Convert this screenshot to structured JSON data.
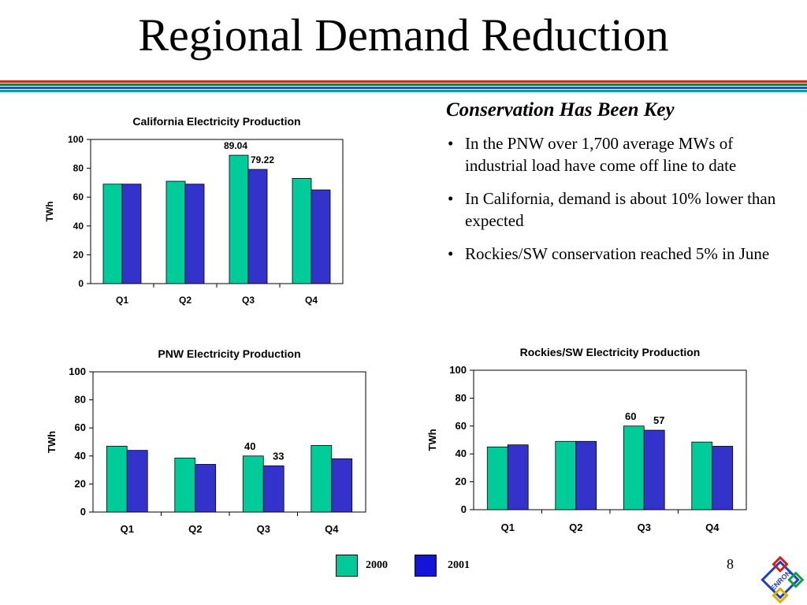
{
  "slide": {
    "title": "Regional Demand Reduction",
    "page_number": "8",
    "stripe_colors": [
      "#d0261c",
      "#1f7a3a",
      "#2f4fbf",
      "#00a0a0"
    ]
  },
  "panel": {
    "heading": "Conservation Has Been Key",
    "bullets": [
      "In the PNW over 1,700 average MWs of industrial load have come off line to date",
      "In California, demand is about 10% lower than expected",
      "Rockies/SW conservation reached 5% in June"
    ]
  },
  "legend": {
    "items": [
      {
        "label": "2000",
        "color": "#00c896"
      },
      {
        "label": "2001",
        "color": "#1414d8"
      }
    ]
  },
  "logo": {
    "text": "ENRON",
    "icon": "enron-logo-icon"
  },
  "colors": {
    "series_2000": "#00cc99",
    "series_2001": "#3333cc"
  },
  "chart_data": [
    {
      "type": "bar",
      "title": "California Electricity Production",
      "ylabel": "TWh",
      "xlabel": "",
      "categories": [
        "Q1",
        "Q2",
        "Q3",
        "Q4"
      ],
      "series": [
        {
          "name": "2000",
          "values": [
            69,
            71,
            89.04,
            73
          ]
        },
        {
          "name": "2001",
          "values": [
            69,
            69,
            79.22,
            65
          ]
        }
      ],
      "data_labels": [
        {
          "category": "Q3",
          "series": "2000",
          "text": "89.04"
        },
        {
          "category": "Q3",
          "series": "2001",
          "text": "79.22"
        }
      ],
      "ylim": [
        0,
        100
      ],
      "yticks": [
        0,
        20,
        40,
        60,
        80,
        100
      ],
      "grid": false,
      "legend": "bottom"
    },
    {
      "type": "bar",
      "title": "PNW Electricity Production",
      "ylabel": "TWh",
      "xlabel": "",
      "categories": [
        "Q1",
        "Q2",
        "Q3",
        "Q4"
      ],
      "series": [
        {
          "name": "2000",
          "values": [
            47,
            38.5,
            40,
            47.5
          ]
        },
        {
          "name": "2001",
          "values": [
            44,
            34,
            33,
            38
          ]
        }
      ],
      "data_labels": [
        {
          "category": "Q3",
          "series": "2000",
          "text": "40"
        },
        {
          "category": "Q3",
          "series": "2001",
          "text": "33"
        }
      ],
      "ylim": [
        0,
        100
      ],
      "yticks": [
        0,
        20,
        40,
        60,
        80,
        100
      ],
      "grid": false,
      "legend": "bottom"
    },
    {
      "type": "bar",
      "title": "Rockies/SW Electricity Production",
      "ylabel": "TWh",
      "xlabel": "",
      "categories": [
        "Q1",
        "Q2",
        "Q3",
        "Q4"
      ],
      "series": [
        {
          "name": "2000",
          "values": [
            45,
            49,
            60,
            48.5
          ]
        },
        {
          "name": "2001",
          "values": [
            46.5,
            49,
            57,
            45.5
          ]
        }
      ],
      "data_labels": [
        {
          "category": "Q3",
          "series": "2000",
          "text": "60"
        },
        {
          "category": "Q3",
          "series": "2001",
          "text": "57"
        }
      ],
      "ylim": [
        0,
        100
      ],
      "yticks": [
        0,
        20,
        40,
        60,
        80,
        100
      ],
      "grid": false,
      "legend": "bottom"
    }
  ]
}
